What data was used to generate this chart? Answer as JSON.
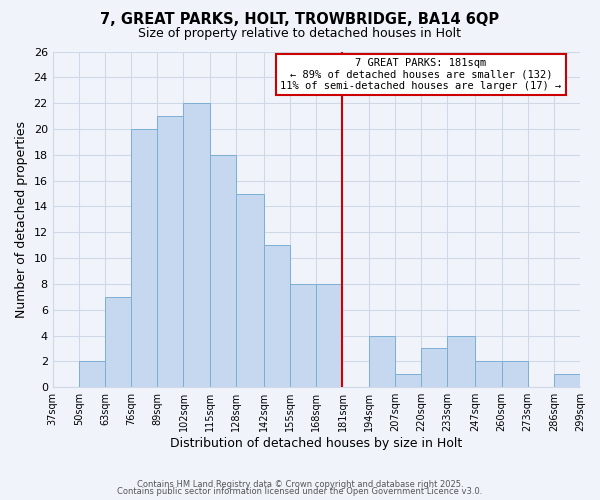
{
  "title1": "7, GREAT PARKS, HOLT, TROWBRIDGE, BA14 6QP",
  "title2": "Size of property relative to detached houses in Holt",
  "xlabel": "Distribution of detached houses by size in Holt",
  "ylabel": "Number of detached properties",
  "bar_color": "#c5d8f0",
  "bar_edge_color": "#7bafd4",
  "background_color": "#f0f4fa",
  "plot_bg_color": "#f0f4fa",
  "grid_color": "#d0d8e8",
  "bin_edges": [
    37,
    50,
    63,
    76,
    89,
    102,
    115,
    128,
    142,
    155,
    168,
    181,
    194,
    207,
    220,
    233,
    247,
    260,
    273,
    286,
    299
  ],
  "counts": [
    0,
    2,
    7,
    20,
    21,
    22,
    18,
    15,
    11,
    8,
    8,
    0,
    4,
    1,
    3,
    4,
    2,
    2,
    0,
    1
  ],
  "vline_x": 181,
  "vline_color": "#cc0000",
  "annotation_title": "7 GREAT PARKS: 181sqm",
  "annotation_line1": "← 89% of detached houses are smaller (132)",
  "annotation_line2": "11% of semi-detached houses are larger (17) →",
  "annotation_box_color": "#ffffff",
  "annotation_box_edge": "#cc0000",
  "ylim": [
    0,
    26
  ],
  "yticks": [
    0,
    2,
    4,
    6,
    8,
    10,
    12,
    14,
    16,
    18,
    20,
    22,
    24,
    26
  ],
  "tick_labels": [
    "37sqm",
    "50sqm",
    "63sqm",
    "76sqm",
    "89sqm",
    "102sqm",
    "115sqm",
    "128sqm",
    "142sqm",
    "155sqm",
    "168sqm",
    "181sqm",
    "194sqm",
    "207sqm",
    "220sqm",
    "233sqm",
    "247sqm",
    "260sqm",
    "273sqm",
    "286sqm",
    "299sqm"
  ],
  "footnote1": "Contains HM Land Registry data © Crown copyright and database right 2025.",
  "footnote2": "Contains public sector information licensed under the Open Government Licence v3.0."
}
